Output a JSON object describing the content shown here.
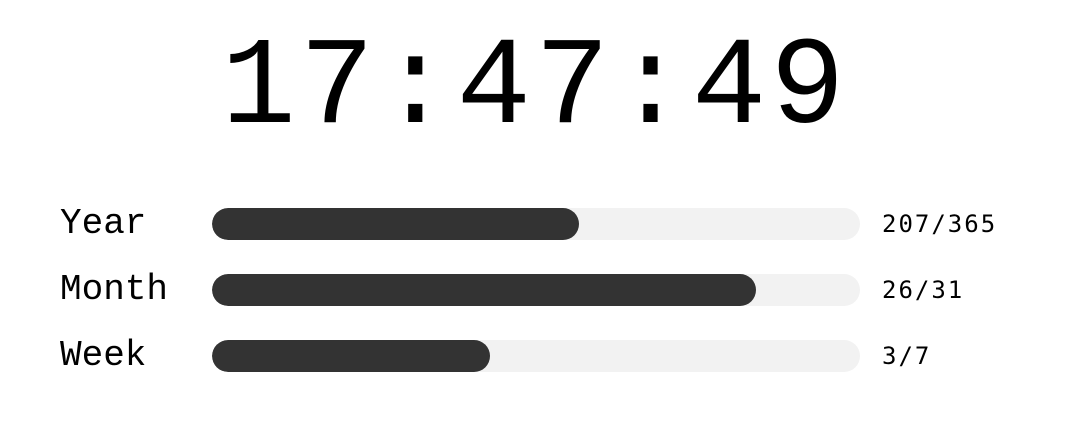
{
  "clock": {
    "time": "17:47:49"
  },
  "progress": {
    "year": {
      "label": "Year",
      "text": "207/365",
      "fraction": 0.567
    },
    "month": {
      "label": "Month",
      "text": "26/31",
      "fraction": 0.839
    },
    "week": {
      "label": "Week",
      "text": "3/7",
      "fraction": 0.429
    }
  },
  "colors": {
    "fill": "#333333",
    "track": "#f2f2f2",
    "text": "#000000",
    "background": "#ffffff"
  }
}
